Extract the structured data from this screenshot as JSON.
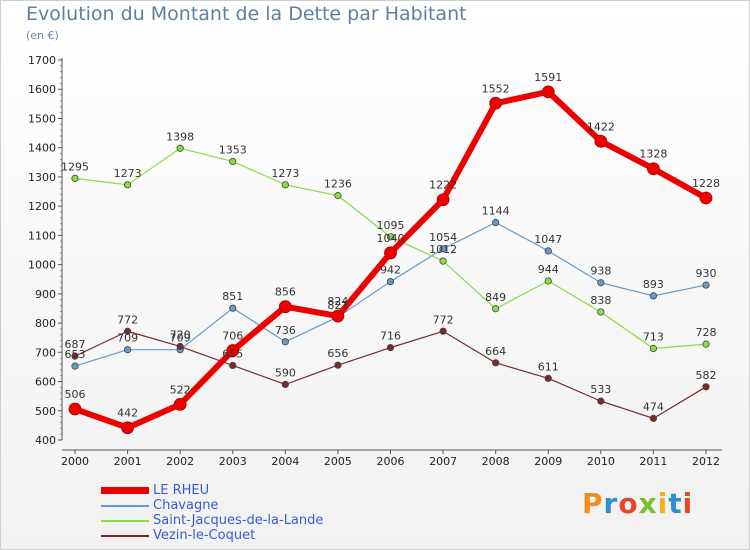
{
  "header": {
    "title": "Evolution du Montant de la Dette par Habitant",
    "subtitle": "(en €)"
  },
  "logo": {
    "text": "Proxiti"
  },
  "chart_data": {
    "type": "line",
    "title": "Evolution du Montant de la Dette par Habitant",
    "subtitle": "(en €)",
    "xlabel": "",
    "ylabel": "",
    "x": [
      "2000",
      "2001",
      "2002",
      "2003",
      "2004",
      "2005",
      "2006",
      "2007",
      "2008",
      "2009",
      "2010",
      "2011",
      "2012"
    ],
    "ylim": [
      400,
      1700
    ],
    "yticks": [
      "400",
      "500",
      "600",
      "700",
      "800",
      "900",
      "1000",
      "1100",
      "1200",
      "1300",
      "1400",
      "1500",
      "1600",
      "1700"
    ],
    "grid": false,
    "legend_position": "bottom-left",
    "series": [
      {
        "name": "LE RHEU",
        "color": "#ee0000",
        "width": 6,
        "values": [
          506,
          442,
          522,
          706,
          856,
          824,
          1040,
          1222,
          1552,
          1591,
          1422,
          1328,
          1228
        ]
      },
      {
        "name": "Chavagne",
        "color": "#6699cc",
        "width": 1.2,
        "values": [
          653,
          709,
          709,
          851,
          736,
          821,
          942,
          1054,
          1144,
          1047,
          938,
          893,
          930
        ]
      },
      {
        "name": "Saint-Jacques-de-la-Lande",
        "color": "#88dd44",
        "width": 1.2,
        "values": [
          1295,
          1273,
          1398,
          1353,
          1273,
          1236,
          1095,
          1012,
          849,
          944,
          838,
          713,
          728
        ]
      },
      {
        "name": "Vezin-le-Coquet",
        "color": "#7a2a2a",
        "width": 1.2,
        "values": [
          687,
          772,
          720,
          655,
          590,
          656,
          716,
          772,
          664,
          611,
          533,
          474,
          582
        ]
      }
    ]
  }
}
